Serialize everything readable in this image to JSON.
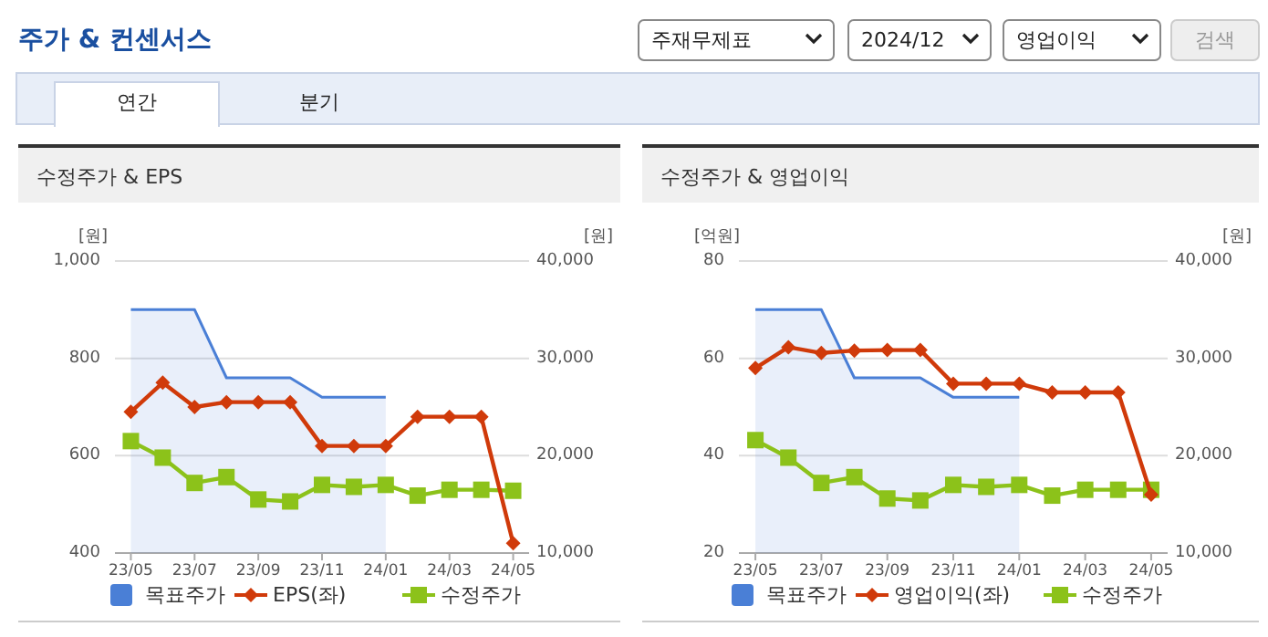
{
  "chart_data": [
    {
      "type": "other",
      "title": "주가 & 컨센서스",
      "annotations": [
        "주재무제표",
        "2024/12",
        "영업이익",
        "검색",
        "연간",
        "분기"
      ]
    },
    {
      "type": "line",
      "title": "수정주가 & EPS",
      "ylabel": "[원]",
      "y2label": "[원]",
      "categories": [
        "23/05",
        null,
        "23/07",
        null,
        "23/09",
        null,
        "23/11",
        null,
        "24/01",
        null,
        "24/03",
        null,
        "24/05"
      ],
      "series": [
        {
          "name": "목표주가",
          "type": "area",
          "axis": "y2",
          "color": "#4a7fd6",
          "marker": "none",
          "values": [
            35000,
            35000,
            35000,
            28000,
            28000,
            28000,
            26000,
            26000,
            26000,
            null,
            null,
            null,
            null
          ]
        },
        {
          "name": "EPS(좌)",
          "type": "line",
          "color": "#d03a0a",
          "marker": "diamond",
          "values": [
            690,
            750,
            700,
            710,
            710,
            710,
            620,
            620,
            620,
            680,
            680,
            680,
            420
          ]
        },
        {
          "name": "수정주가",
          "type": "line",
          "axis": "y2",
          "color": "#8cc21a",
          "marker": "square",
          "values": [
            21500,
            19800,
            17200,
            17800,
            15500,
            15300,
            17000,
            16800,
            17000,
            15900,
            16500,
            16500,
            16400
          ]
        }
      ],
      "ylim": [
        400,
        1000
      ],
      "yticks": [
        400,
        600,
        800,
        {
          "value": 1000,
          "label": "1,000"
        }
      ],
      "y2lim": [
        10000,
        40000
      ],
      "y2ticks": [
        {
          "value": 10000,
          "label": "10,000"
        },
        {
          "value": 20000,
          "label": "20,000"
        },
        {
          "value": 30000,
          "label": "30,000"
        },
        {
          "value": 40000,
          "label": "40,000"
        }
      ],
      "grid": "y",
      "legend": "bottom"
    },
    {
      "type": "line",
      "title": "수정주가 & 영업이익",
      "ylabel": "[억원]",
      "y2label": "[원]",
      "categories": [
        "23/05",
        null,
        "23/07",
        null,
        "23/09",
        null,
        "23/11",
        null,
        "24/01",
        null,
        "24/03",
        null,
        "24/05"
      ],
      "series": [
        {
          "name": "목표주가",
          "type": "area",
          "axis": "y2",
          "color": "#4a7fd6",
          "marker": "none",
          "values": [
            35000,
            35000,
            35000,
            28000,
            28000,
            28000,
            26000,
            26000,
            26000,
            null,
            null,
            null,
            null
          ]
        },
        {
          "name": "영업이익(좌)",
          "type": "line",
          "color": "#d03a0a",
          "marker": "diamond",
          "values": [
            58,
            62.3,
            61.1,
            61.6,
            61.7,
            61.7,
            54.8,
            54.8,
            54.8,
            53,
            53,
            53,
            32
          ]
        },
        {
          "name": "수정주가",
          "type": "line",
          "axis": "y2",
          "color": "#8cc21a",
          "marker": "square",
          "values": [
            21600,
            19800,
            17200,
            17800,
            15600,
            15400,
            17000,
            16800,
            17000,
            15900,
            16500,
            16500,
            16500
          ]
        }
      ],
      "ylim": [
        20,
        80
      ],
      "yticks": [
        20,
        40,
        60,
        80
      ],
      "y2lim": [
        10000,
        40000
      ],
      "y2ticks": [
        {
          "value": 10000,
          "label": "10,000"
        },
        {
          "value": 20000,
          "label": "20,000"
        },
        {
          "value": 30000,
          "label": "30,000"
        },
        {
          "value": 40000,
          "label": "40,000"
        }
      ],
      "grid": "y",
      "legend": "bottom"
    }
  ]
}
